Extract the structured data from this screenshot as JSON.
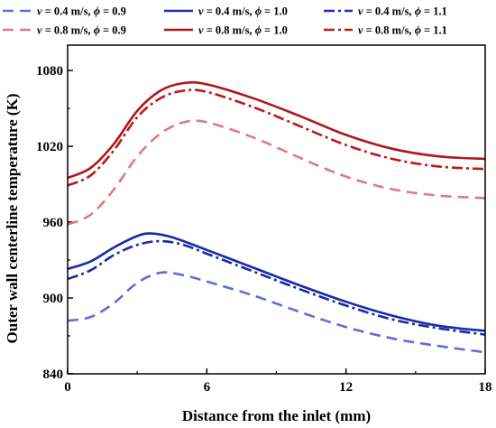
{
  "chart_data": {
    "type": "line",
    "title": "",
    "xlabel": "Distance from the inlet (mm)",
    "ylabel": "Outer wall centerline temperature (K)",
    "xlim": [
      0,
      18
    ],
    "ylim": [
      840,
      1100
    ],
    "xticks": [
      "0",
      "6",
      "12",
      "18"
    ],
    "yticks": [
      "840",
      "900",
      "960",
      "1020",
      "1080"
    ],
    "grid": false,
    "legend_position": "top",
    "legend": [
      {
        "v_symbol": "v",
        "v_text": " = 0.4 m/s, ",
        "phi_symbol": "ϕ",
        "phi_text": " = 0.9"
      },
      {
        "v_symbol": "v",
        "v_text": " = 0.4 m/s, ",
        "phi_symbol": "ϕ",
        "phi_text": " = 1.0"
      },
      {
        "v_symbol": "v",
        "v_text": " = 0.4 m/s, ",
        "phi_symbol": "ϕ",
        "phi_text": " = 1.1"
      },
      {
        "v_symbol": "v",
        "v_text": " = 0.8 m/s, ",
        "phi_symbol": "ϕ",
        "phi_text": " = 0.9"
      },
      {
        "v_symbol": "v",
        "v_text": " = 0.8 m/s, ",
        "phi_symbol": "ϕ",
        "phi_text": " = 1.0"
      },
      {
        "v_symbol": "v",
        "v_text": " = 0.8 m/s, ",
        "phi_symbol": "ϕ",
        "phi_text": " = 1.1"
      }
    ],
    "series": [
      {
        "color": "#5a6fe0",
        "dash": "dash",
        "points": [
          [
            0,
            882
          ],
          [
            1,
            885
          ],
          [
            2,
            896
          ],
          [
            3,
            912
          ],
          [
            4,
            920
          ],
          [
            5,
            918
          ],
          [
            6,
            913
          ],
          [
            8,
            902
          ],
          [
            10,
            889
          ],
          [
            12,
            877
          ],
          [
            14,
            868
          ],
          [
            16,
            862
          ],
          [
            18,
            857
          ]
        ]
      },
      {
        "color": "#1a2aa8",
        "dash": "solid",
        "points": [
          [
            0,
            923
          ],
          [
            1,
            929
          ],
          [
            2,
            940
          ],
          [
            3,
            949
          ],
          [
            3.6,
            951
          ],
          [
            4.5,
            948
          ],
          [
            6,
            938
          ],
          [
            8,
            924
          ],
          [
            10,
            910
          ],
          [
            12,
            897
          ],
          [
            14,
            886
          ],
          [
            16,
            878
          ],
          [
            18,
            874
          ]
        ]
      },
      {
        "color": "#1a2aa8",
        "dash": "dashdot",
        "points": [
          [
            0,
            915
          ],
          [
            1,
            922
          ],
          [
            2,
            934
          ],
          [
            3,
            942
          ],
          [
            4,
            945
          ],
          [
            5,
            942
          ],
          [
            6,
            935
          ],
          [
            8,
            921
          ],
          [
            10,
            907
          ],
          [
            12,
            894
          ],
          [
            14,
            883
          ],
          [
            16,
            876
          ],
          [
            18,
            871
          ]
        ]
      },
      {
        "color": "#e87878",
        "dash": "dash",
        "points": [
          [
            0,
            958
          ],
          [
            1,
            966
          ],
          [
            2,
            986
          ],
          [
            3,
            1012
          ],
          [
            4,
            1030
          ],
          [
            5,
            1039
          ],
          [
            6,
            1039
          ],
          [
            8,
            1027
          ],
          [
            10,
            1011
          ],
          [
            12,
            996
          ],
          [
            14,
            986
          ],
          [
            16,
            981
          ],
          [
            18,
            979
          ]
        ]
      },
      {
        "color": "#b01818",
        "dash": "solid",
        "points": [
          [
            0,
            995
          ],
          [
            1,
            1003
          ],
          [
            2,
            1022
          ],
          [
            3,
            1048
          ],
          [
            4,
            1064
          ],
          [
            5,
            1070
          ],
          [
            6,
            1069
          ],
          [
            8,
            1058
          ],
          [
            10,
            1044
          ],
          [
            12,
            1029
          ],
          [
            14,
            1018
          ],
          [
            16,
            1012
          ],
          [
            18,
            1010
          ]
        ]
      },
      {
        "color": "#c01818",
        "dash": "dashdot",
        "points": [
          [
            0,
            989
          ],
          [
            1,
            997
          ],
          [
            2,
            1017
          ],
          [
            3,
            1043
          ],
          [
            4,
            1058
          ],
          [
            5,
            1064
          ],
          [
            6,
            1063
          ],
          [
            8,
            1051
          ],
          [
            10,
            1036
          ],
          [
            12,
            1021
          ],
          [
            14,
            1010
          ],
          [
            16,
            1004
          ],
          [
            18,
            1002
          ]
        ]
      }
    ]
  }
}
